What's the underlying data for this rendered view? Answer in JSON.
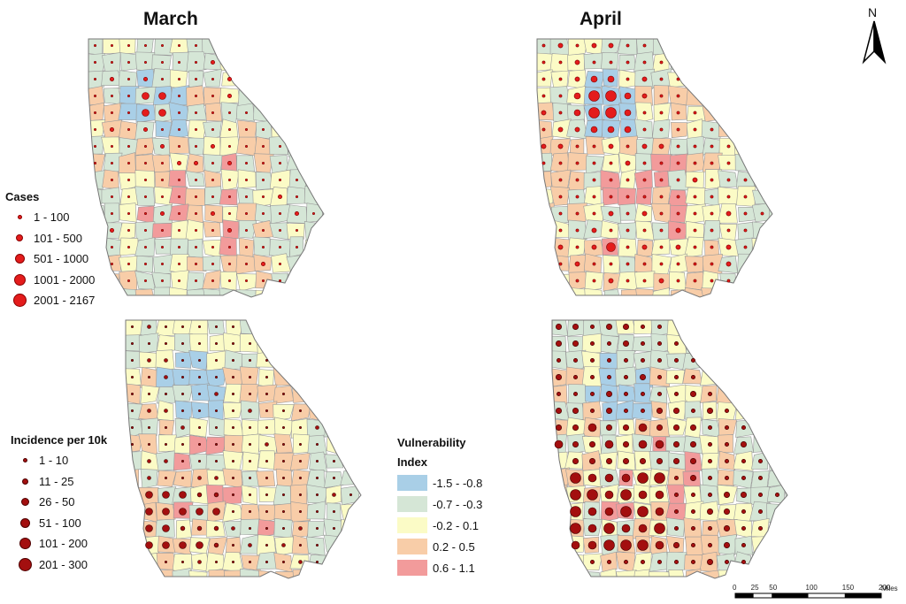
{
  "titles": {
    "march": "March",
    "april": "April"
  },
  "north_label": "N",
  "cases_legend": {
    "title": "Cases",
    "items": [
      {
        "label": "1 - 100"
      },
      {
        "label": "101 - 500"
      },
      {
        "label": "501 - 1000"
      },
      {
        "label": "1001 - 2000"
      },
      {
        "label": "2001 - 2167"
      }
    ]
  },
  "incidence_legend": {
    "title": "Incidence per 10k",
    "items": [
      {
        "label": "1 - 10"
      },
      {
        "label": "11 - 25"
      },
      {
        "label": "26 - 50"
      },
      {
        "label": "51 - 100"
      },
      {
        "label": "101 - 200"
      },
      {
        "label": "201 - 300"
      }
    ]
  },
  "vulnerability_legend": {
    "title_line1": "Vulnerability",
    "title_line2": "Index",
    "items": [
      {
        "label": "-1.5 - -0.8",
        "color": "#a9cfe7"
      },
      {
        "label": "-0.7 - -0.3",
        "color": "#d5e6d6"
      },
      {
        "label": "-0.2 - 0.1",
        "color": "#fbfbc6"
      },
      {
        "label": "0.2 - 0.5",
        "color": "#f8cda8"
      },
      {
        "label": "0.6 - 1.1",
        "color": "#f29b9b"
      }
    ]
  },
  "scale_bar": {
    "ticks": [
      "0",
      "25",
      "50",
      "100",
      "150",
      "200"
    ],
    "unit": "Miles"
  },
  "colors": {
    "county_border": "#9a9a9a",
    "cases_dot": "#e41c1c",
    "incidence_dot": "#a30f0f"
  }
}
